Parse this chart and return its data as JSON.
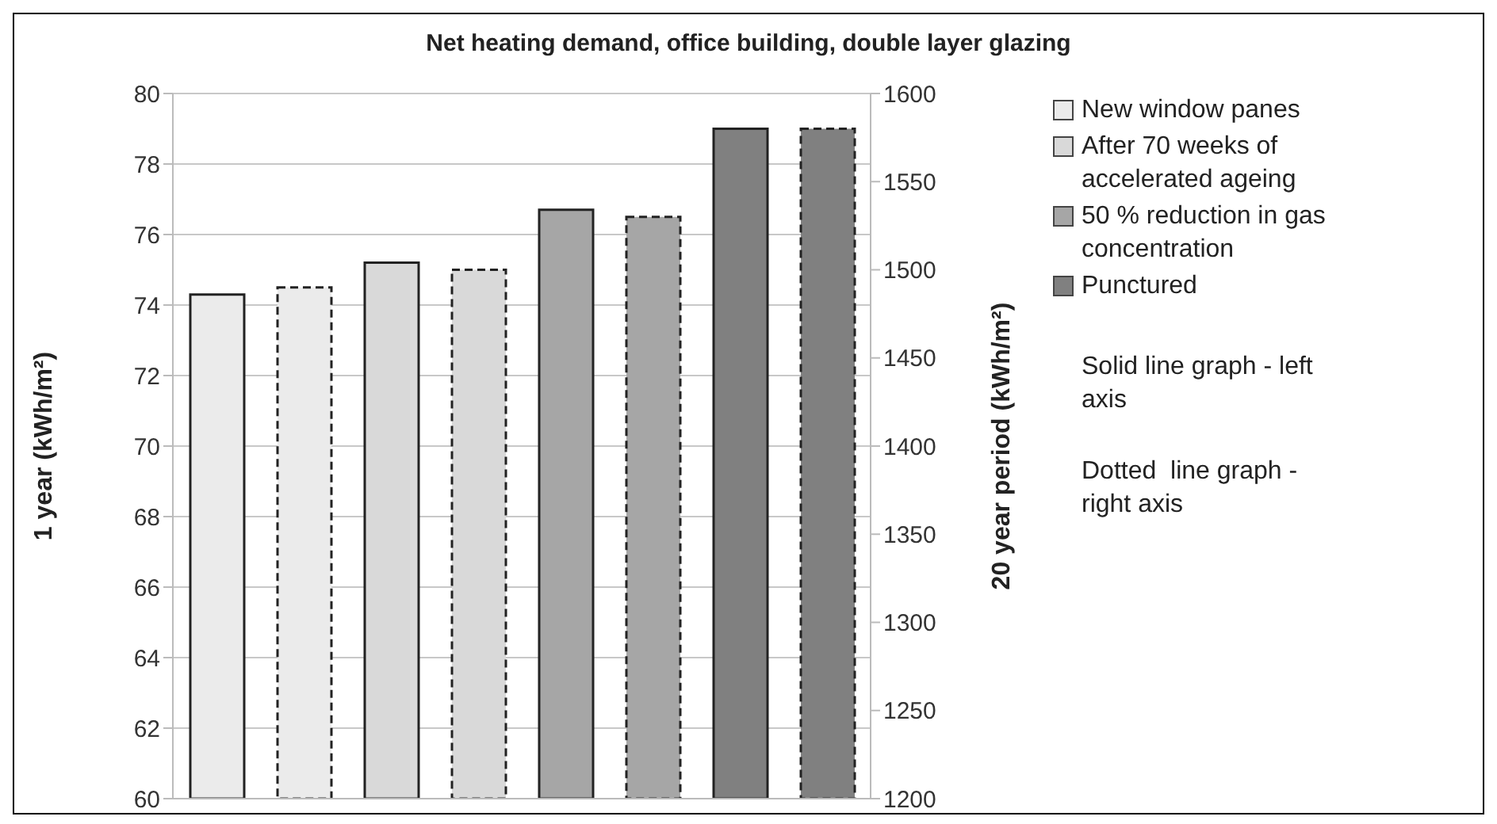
{
  "chart_data": {
    "type": "bar",
    "title": "Net heating demand, office building, double layer glazing",
    "ylabel": "1 year (kWh/m²)",
    "y2label": "20 year period (kWh/m²)",
    "categories": [
      null,
      null,
      null,
      null,
      null,
      null,
      null,
      null
    ],
    "series": [
      {
        "name": "New window panes",
        "color": "#ebebeb",
        "values": [
          74.3,
          null,
          null,
          null,
          null,
          null,
          null,
          null
        ]
      },
      {
        "color": "#ebebeb",
        "axis": "y2",
        "line_style": "dashed",
        "values": [
          null,
          1490,
          null,
          null,
          null,
          null,
          null,
          null
        ]
      },
      {
        "name": "After 70 weeks of accelerated ageing",
        "color": "#d9d9d9",
        "values": [
          null,
          null,
          75.2,
          null,
          null,
          null,
          null,
          null
        ]
      },
      {
        "color": "#d9d9d9",
        "axis": "y2",
        "line_style": "dashed",
        "values": [
          null,
          null,
          null,
          1500,
          null,
          null,
          null,
          null
        ]
      },
      {
        "name": "50 % reduction in gas concentration",
        "color": "#a6a6a6",
        "values": [
          null,
          null,
          null,
          null,
          76.7,
          null,
          null,
          null
        ]
      },
      {
        "color": "#a6a6a6",
        "axis": "y2",
        "line_style": "dashed",
        "values": [
          null,
          null,
          null,
          null,
          null,
          1530,
          null,
          null
        ]
      },
      {
        "name": "Punctured",
        "color": "#808080",
        "values": [
          null,
          null,
          null,
          null,
          null,
          null,
          79.0,
          null
        ]
      },
      {
        "color": "#808080",
        "axis": "y2",
        "line_style": "dashed",
        "values": [
          null,
          null,
          null,
          null,
          null,
          null,
          null,
          1580
        ]
      }
    ],
    "ylim": [
      60,
      80
    ],
    "yticks": [
      60,
      62,
      64,
      66,
      68,
      70,
      72,
      74,
      76,
      78,
      80
    ],
    "y2lim": [
      1200,
      1600
    ],
    "y2ticks": [
      1200,
      1250,
      1300,
      1350,
      1400,
      1450,
      1500,
      1550,
      1600
    ],
    "grid": "y",
    "legend": "right",
    "annotations": [
      "Solid line graph - left axis",
      "Dotted  line graph - right axis"
    ]
  }
}
